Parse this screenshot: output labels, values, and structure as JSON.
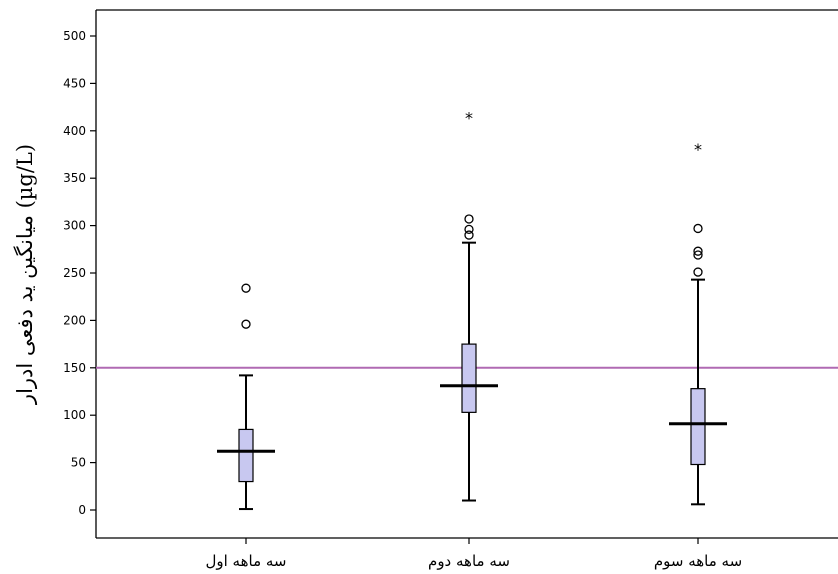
{
  "chart_data": {
    "type": "box",
    "title": "",
    "xlabel": "",
    "ylabel": "میانگین ید دفعی ادرار (µg/L)",
    "ylim": [
      -25,
      525
    ],
    "yticks": [
      0,
      50,
      100,
      150,
      200,
      250,
      300,
      350,
      400,
      450,
      500
    ],
    "grid": false,
    "categories": [
      "سه ماهه اول",
      "سه ماهه دوم",
      "سه ماهه سوم"
    ],
    "reference_line": {
      "value": 150,
      "color": "#b06ab3"
    },
    "box_color": "#c8c8f0",
    "boxes": [
      {
        "category": "سه ماهه اول",
        "whisker_low": 1,
        "q1": 30,
        "median": 62,
        "q3": 85,
        "whisker_high": 142,
        "outliers": [
          196,
          234
        ],
        "extremes": []
      },
      {
        "category": "سه ماهه دوم",
        "whisker_low": 10,
        "q1": 103,
        "median": 131,
        "q3": 175,
        "whisker_high": 282,
        "outliers": [
          290,
          296,
          307
        ],
        "extremes": [
          414
        ]
      },
      {
        "category": "سه ماهه سوم",
        "whisker_low": 6,
        "q1": 48,
        "median": 91,
        "q3": 128,
        "whisker_high": 243,
        "outliers": [
          251,
          269,
          273,
          297
        ],
        "extremes": [
          381
        ]
      }
    ]
  }
}
